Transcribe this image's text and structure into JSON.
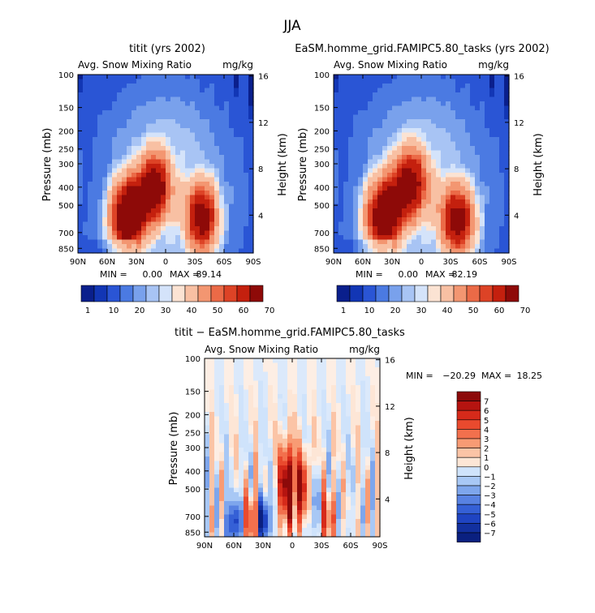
{
  "page_title": "JJA",
  "colors": {
    "pos": [
      "#fde6d6",
      "#fbc4a6",
      "#f89b74",
      "#f2704d",
      "#e94a2e",
      "#d62a1a",
      "#b51410",
      "#8c0a0a"
    ],
    "neg": [
      "#cfe3fb",
      "#a8c8f5",
      "#7ea6ec",
      "#5882e2",
      "#3560d6",
      "#1f44c2",
      "#12309f",
      "#0a2080"
    ],
    "seq": [
      "#0a1f8c",
      "#1236b5",
      "#2a55d5",
      "#4b7ae2",
      "#79a1ec",
      "#a8c4f4",
      "#d4e3fa",
      "#fbe3d3",
      "#f8c0a3",
      "#f39671",
      "#eb6a47",
      "#dd4326",
      "#c4200e",
      "#8e0a08"
    ]
  },
  "chart_data": [
    {
      "type": "heatmap",
      "title": "titit (yrs 2002)",
      "left_label": "Avg. Snow Mixing Ratio",
      "right_label": "mg/kg",
      "xlabel": "",
      "ylabel": "Pressure (mb)",
      "y2label": "Height (km)",
      "x_ticks": [
        "90N",
        "60N",
        "30N",
        "0",
        "30S",
        "60S",
        "90S"
      ],
      "y_ticks": [
        "100",
        "150",
        "200",
        "250",
        "300",
        "400",
        "500",
        "700",
        "850"
      ],
      "y2_ticks": [
        "16",
        "12",
        "8",
        "4"
      ],
      "ylim": [
        100,
        1000
      ],
      "min_label": "MIN =",
      "min_value": "0.00",
      "max_label": "MAX =",
      "max_value": "89.14",
      "colorbar_labels": [
        "1",
        "10",
        "20",
        "30",
        "40",
        "50",
        "60",
        "70"
      ],
      "maxima": [
        {
          "lat": 40,
          "p": 580,
          "value": 89.14
        },
        {
          "lat": 10,
          "p": 400,
          "value": 75
        },
        {
          "lat": -37,
          "p": 580,
          "value": 80
        }
      ]
    },
    {
      "type": "heatmap",
      "title": "EaSM.homme_grid.FAMIPC5.80_tasks (yrs 2002)",
      "left_label": "Avg. Snow Mixing Ratio",
      "right_label": "mg/kg",
      "xlabel": "",
      "ylabel": "Pressure (mb)",
      "y2label": "Height (km)",
      "x_ticks": [
        "90N",
        "60N",
        "30N",
        "0",
        "30S",
        "60S",
        "90S"
      ],
      "y_ticks": [
        "100",
        "150",
        "200",
        "250",
        "300",
        "400",
        "500",
        "700",
        "850"
      ],
      "y2_ticks": [
        "16",
        "12",
        "8",
        "4"
      ],
      "ylim": [
        100,
        1000
      ],
      "min_label": "MIN =",
      "min_value": "0.00",
      "max_label": "MAX =",
      "max_value": "82.19",
      "colorbar_labels": [
        "1",
        "10",
        "20",
        "30",
        "40",
        "50",
        "60",
        "70"
      ],
      "maxima": [
        {
          "lat": 40,
          "p": 580,
          "value": 82.19
        },
        {
          "lat": 10,
          "p": 380,
          "value": 72
        },
        {
          "lat": -37,
          "p": 600,
          "value": 78
        }
      ]
    },
    {
      "type": "heatmap",
      "title": "titit − EaSM.homme_grid.FAMIPC5.80_tasks",
      "left_label": "Avg. Snow Mixing Ratio",
      "right_label": "mg/kg",
      "xlabel": "",
      "ylabel": "Pressure (mb)",
      "y2label": "Height (km)",
      "x_ticks": [
        "90N",
        "60N",
        "30N",
        "0",
        "30S",
        "60S",
        "90S"
      ],
      "y_ticks": [
        "100",
        "150",
        "200",
        "250",
        "300",
        "400",
        "500",
        "700",
        "850"
      ],
      "y2_ticks": [
        "16",
        "12",
        "8",
        "4"
      ],
      "ylim": [
        100,
        1000
      ],
      "min_label": "MIN =",
      "min_value": "−20.29",
      "max_label": "MAX =",
      "max_value": "18.25",
      "colorbar_labels": [
        "7",
        "6",
        "5",
        "4",
        "3",
        "2",
        "1",
        "0",
        "−1",
        "−2",
        "−3",
        "−4",
        "−5",
        "−6",
        "−7"
      ],
      "maxima": [
        {
          "lat": 5,
          "p": 450,
          "value": 18.25
        },
        {
          "lat": 50,
          "p": 760,
          "value": -20.29
        }
      ]
    }
  ]
}
